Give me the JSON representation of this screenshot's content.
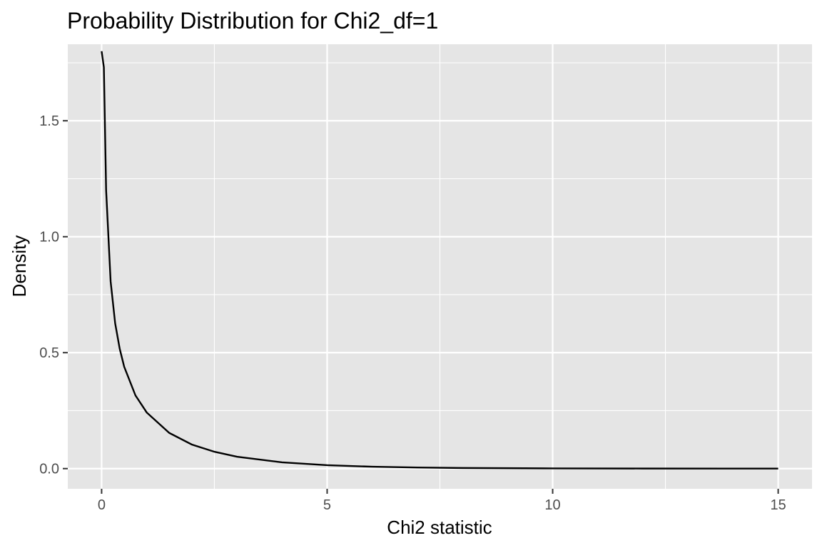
{
  "chart_data": {
    "type": "line",
    "title": "Probability Distribution for Chi2_df=1",
    "xlabel": "Chi2 statistic",
    "ylabel": "Density",
    "xlim": [
      -0.75,
      15.75
    ],
    "ylim": [
      -0.087,
      1.83
    ],
    "x_ticks": [
      0,
      5,
      10,
      15
    ],
    "x_tick_labels": [
      "0",
      "5",
      "10",
      "15"
    ],
    "x_minor_ticks": [
      2.5,
      7.5,
      12.5
    ],
    "y_ticks": [
      0.0,
      0.5,
      1.0,
      1.5
    ],
    "y_tick_labels": [
      "0.0",
      "0.5",
      "1.0",
      "1.5"
    ],
    "y_minor_ticks": [
      0.25,
      0.75,
      1.25,
      1.75
    ],
    "grid": true,
    "legend": "none",
    "series": [
      {
        "distribution": "chi-squared",
        "df": 1,
        "x": [
          0.0,
          0.05,
          0.1,
          0.2,
          0.3,
          0.4,
          0.5,
          0.75,
          1.0,
          1.5,
          2.0,
          2.5,
          3.0,
          4.0,
          5.0,
          6.0,
          7.0,
          8.0,
          10.0,
          12.0,
          15.0
        ],
        "y": [
          1.8,
          1.7304,
          1.2,
          0.807,
          0.627,
          0.518,
          0.4394,
          0.3157,
          0.242,
          0.1539,
          0.1038,
          0.0727,
          0.0514,
          0.027,
          0.0146,
          0.0081,
          0.0046,
          0.0026,
          0.0009,
          0.0003,
          0.0001
        ],
        "color": "#000000"
      }
    ]
  }
}
